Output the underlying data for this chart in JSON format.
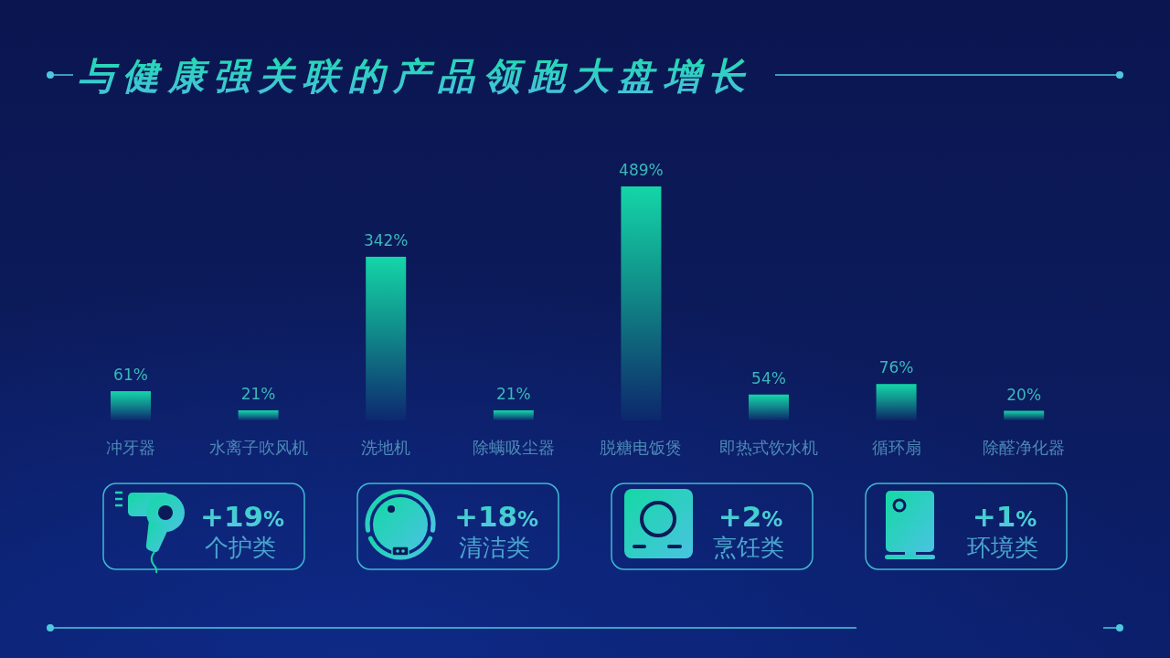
{
  "chart_data": [
    {
      "type": "bar",
      "title": "与健康强关联的产品领跑大盘增长",
      "categories": [
        "冲牙器",
        "水离子吹风机",
        "洗地机",
        "除螨吸尘器",
        "脱糖电饭煲",
        "即热式饮水机",
        "循环扇",
        "除醛净化器"
      ],
      "values": [
        61,
        21,
        342,
        21,
        489,
        54,
        76,
        20
      ],
      "value_labels": [
        "61%",
        "21%",
        "342%",
        "21%",
        "489%",
        "54%",
        "76%",
        "20%"
      ],
      "color": "#14d6a8"
    },
    {
      "type": "other",
      "annotations": [
        "+19%",
        "个护类",
        "+18%",
        "清洁类",
        "+2%",
        "烹饪类",
        "+1%",
        "环境类"
      ]
    }
  ]
}
